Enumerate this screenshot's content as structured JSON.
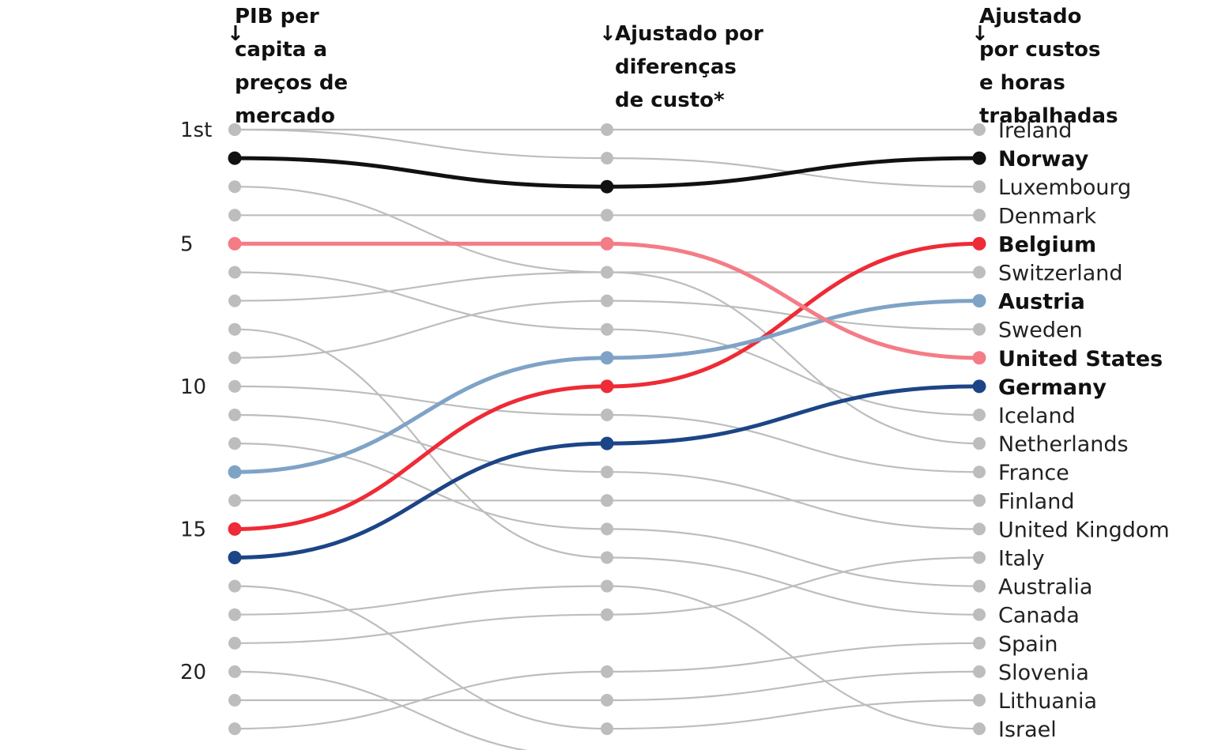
{
  "headers": [
    {
      "arrow": "↓",
      "text": " PIB per\ncapita a\npreços de\nmercado"
    },
    {
      "arrow": "↓",
      "text": "Ajustado por\ndiferenças\nde custo*"
    },
    {
      "arrow": "↓",
      "text": " Ajustado\npor custos\ne horas\ntrabalhadas"
    }
  ],
  "chart_data": {
    "type": "slope",
    "rank_ticks": [
      {
        "rank": 1,
        "label": "1st"
      },
      {
        "rank": 5,
        "label": "5"
      },
      {
        "rank": 10,
        "label": "10"
      },
      {
        "rank": 15,
        "label": "15"
      },
      {
        "rank": 20,
        "label": "20"
      }
    ],
    "columns": [
      "PIB per capita a preços de mercado",
      "Ajustado por diferenças de custo*",
      "Ajustado por custos e horas trabalhadas"
    ],
    "colors": {
      "default": "#bdbdbd",
      "Norway": "#111111",
      "United States": "#f47c86",
      "Austria": "#7ea3c6",
      "Belgium": "#ee2b36",
      "Germany": "#1c4587"
    },
    "highlighted": [
      "Norway",
      "Belgium",
      "Austria",
      "United States",
      "Germany"
    ],
    "series": [
      {
        "name": "Ireland",
        "ranks": [
          1,
          1,
          1
        ]
      },
      {
        "name": "Norway",
        "ranks": [
          2,
          3,
          2
        ]
      },
      {
        "name": "Luxembourg",
        "ranks": [
          1,
          2,
          3
        ]
      },
      {
        "name": "Denmark",
        "ranks": [
          4,
          4,
          4
        ]
      },
      {
        "name": "Belgium",
        "ranks": [
          15,
          10,
          5
        ]
      },
      {
        "name": "Switzerland",
        "ranks": [
          3,
          6,
          6
        ]
      },
      {
        "name": "Austria",
        "ranks": [
          13,
          9,
          7
        ]
      },
      {
        "name": "Sweden",
        "ranks": [
          9,
          7,
          8
        ]
      },
      {
        "name": "United States",
        "ranks": [
          5,
          5,
          9
        ]
      },
      {
        "name": "Germany",
        "ranks": [
          16,
          12,
          10
        ]
      },
      {
        "name": "Iceland",
        "ranks": [
          6,
          8,
          11
        ]
      },
      {
        "name": "Netherlands",
        "ranks": [
          7,
          6,
          12
        ]
      },
      {
        "name": "France",
        "ranks": [
          10,
          11,
          13
        ]
      },
      {
        "name": "Finland",
        "ranks": [
          14,
          14,
          14
        ]
      },
      {
        "name": "United Kingdom",
        "ranks": [
          11,
          13,
          15
        ]
      },
      {
        "name": "Italy",
        "ranks": [
          19,
          18,
          16
        ]
      },
      {
        "name": "Australia",
        "ranks": [
          12,
          15,
          17
        ]
      },
      {
        "name": "Canada",
        "ranks": [
          8,
          16,
          18
        ]
      },
      {
        "name": "Spain",
        "ranks": [
          22,
          20,
          19
        ]
      },
      {
        "name": "Slovenia",
        "ranks": [
          21,
          21,
          20
        ]
      },
      {
        "name": "Lithuania",
        "ranks": [
          17,
          22,
          21
        ]
      },
      {
        "name": "Israel",
        "ranks": [
          18,
          17,
          22
        ]
      },
      {
        "name": "",
        "ranks": [
          20,
          23,
          23
        ]
      }
    ]
  }
}
